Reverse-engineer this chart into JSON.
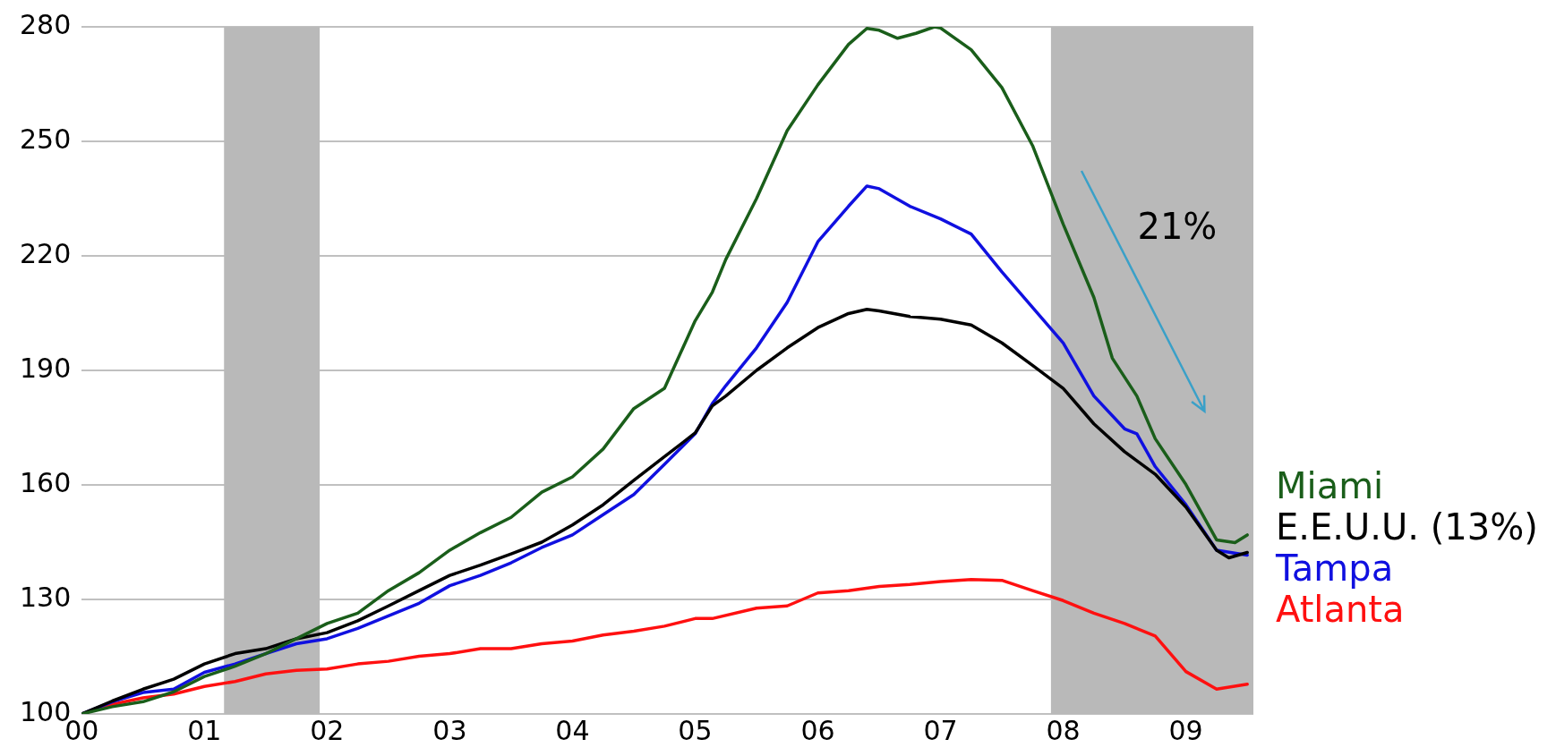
{
  "chart_data": {
    "type": "line",
    "xlim": [
      0,
      9.55
    ],
    "xticks": [
      {
        "value": 0,
        "label": "00"
      },
      {
        "value": 1,
        "label": "01"
      },
      {
        "value": 2,
        "label": "02"
      },
      {
        "value": 3,
        "label": "03"
      },
      {
        "value": 4,
        "label": "04"
      },
      {
        "value": 5,
        "label": "05"
      },
      {
        "value": 6,
        "label": "06"
      },
      {
        "value": 7,
        "label": "07"
      },
      {
        "value": 8,
        "label": "08"
      },
      {
        "value": 9,
        "label": "09"
      }
    ],
    "ylim": [
      100,
      280
    ],
    "yticks": [
      100,
      130,
      160,
      190,
      220,
      250,
      280
    ],
    "grid": "y",
    "legend": "right",
    "marker": "none",
    "line_style": "solid",
    "bands": [
      {
        "axis": "x",
        "from": 1.16,
        "to": 1.94,
        "color": "#b9b9b9"
      },
      {
        "axis": "x",
        "from": 7.9,
        "to": 9.55,
        "color": "#b9b9b9"
      }
    ],
    "annotations": [
      "21%"
    ],
    "series": [
      {
        "name": "Miami",
        "color": "#1a5e1a",
        "x": [
          0,
          0.25,
          0.5,
          0.75,
          1,
          1.25,
          1.5,
          1.75,
          2,
          2.25,
          2.5,
          2.75,
          3,
          3.25,
          3.5,
          3.75,
          4,
          4.25,
          4.5,
          4.75,
          5,
          5.14,
          5.25,
          5.5,
          5.75,
          6,
          6.25,
          6.4,
          6.5,
          6.65,
          6.8,
          6.95,
          7,
          7.25,
          7.5,
          7.75,
          8,
          8.25,
          8.4,
          8.6,
          8.75,
          9,
          9.25,
          9.4,
          9.5
        ],
        "values": [
          100,
          101.9,
          103.2,
          105.8,
          109.8,
          112.5,
          115.8,
          119.7,
          123.7,
          126.4,
          132.3,
          137,
          142.9,
          147.5,
          151.5,
          158.1,
          162.1,
          169.4,
          180,
          185.3,
          203,
          210.5,
          219.1,
          235,
          252.8,
          264.8,
          275.4,
          279.6,
          279.1,
          277,
          278.3,
          280,
          279.7,
          274,
          264.1,
          248.9,
          228.3,
          209.1,
          193.2,
          183.3,
          172.1,
          160.1,
          145.6,
          144.9,
          146.9
        ]
      },
      {
        "name": "E.E.U.U. (13%)",
        "color": "#000000",
        "x": [
          0,
          0.25,
          0.5,
          0.75,
          1,
          1.25,
          1.5,
          1.75,
          2,
          2.25,
          2.5,
          2.75,
          3,
          3.25,
          3.5,
          3.75,
          4,
          4.25,
          4.5,
          4.75,
          5,
          5.14,
          5.25,
          5.5,
          5.75,
          6,
          6.25,
          6.4,
          6.5,
          6.75,
          7,
          7.25,
          7.5,
          7.75,
          8,
          8.25,
          8.5,
          8.75,
          9,
          9.25,
          9.35,
          9.5
        ],
        "values": [
          100,
          103.4,
          106.5,
          109.1,
          113.1,
          115.8,
          117.1,
          119.7,
          121.3,
          124.4,
          128.3,
          132.3,
          136.3,
          139,
          141.9,
          145,
          149.5,
          154.8,
          161.2,
          167.4,
          173.6,
          180.7,
          183.3,
          190,
          195.9,
          201.2,
          204.9,
          206,
          205.6,
          204.1,
          203.4,
          201.9,
          197.2,
          191.3,
          185.3,
          176,
          168.7,
          162.8,
          154.2,
          142.9,
          140.9,
          142.3
        ]
      },
      {
        "name": "Tampa",
        "color": "#1010e0",
        "x": [
          0,
          0.25,
          0.5,
          0.75,
          1,
          1.25,
          1.5,
          1.75,
          2,
          2.25,
          2.5,
          2.75,
          3,
          3.25,
          3.5,
          3.75,
          4,
          4.25,
          4.5,
          4.75,
          5,
          5.14,
          5.25,
          5.5,
          5.75,
          6,
          6.25,
          6.4,
          6.5,
          6.75,
          7,
          7.25,
          7.5,
          7.75,
          8,
          8.25,
          8.5,
          8.6,
          8.75,
          9,
          9.25,
          9.5
        ],
        "values": [
          100,
          103.2,
          105.6,
          106.5,
          110.9,
          113.1,
          115.8,
          118.4,
          119.7,
          122.4,
          125.7,
          129,
          133.6,
          136.3,
          139.6,
          143.6,
          146.9,
          152.2,
          157.5,
          165.4,
          173.4,
          181.3,
          186,
          195.9,
          207.8,
          223.7,
          233,
          238.3,
          237.6,
          233,
          229.7,
          225.7,
          215.8,
          206.5,
          197.2,
          183.3,
          174.7,
          173.4,
          164.8,
          154.8,
          142.9,
          141.6
        ]
      },
      {
        "name": "Atlanta",
        "color": "#ff1010",
        "x": [
          0,
          0.25,
          0.5,
          0.75,
          1,
          1.25,
          1.5,
          1.75,
          2,
          2.25,
          2.5,
          2.75,
          3,
          3.25,
          3.5,
          3.75,
          4,
          4.25,
          4.5,
          4.75,
          5,
          5.14,
          5.5,
          5.75,
          6,
          6.25,
          6.5,
          6.75,
          7,
          7.25,
          7.5,
          7.75,
          8,
          8.25,
          8.5,
          8.75,
          9,
          9.25,
          9.5
        ],
        "values": [
          100,
          102.5,
          104.2,
          105.2,
          107.2,
          108.5,
          110.5,
          111.4,
          111.8,
          113.1,
          113.8,
          115.1,
          115.8,
          117.1,
          117.1,
          118.4,
          119.1,
          120.7,
          121.7,
          123,
          125,
          125,
          127.7,
          128.3,
          131.7,
          132.3,
          133.4,
          133.9,
          134.7,
          135.2,
          135,
          132.3,
          129.7,
          126.4,
          123.7,
          120.4,
          111.1,
          106.5,
          107.8
        ]
      }
    ]
  }
}
